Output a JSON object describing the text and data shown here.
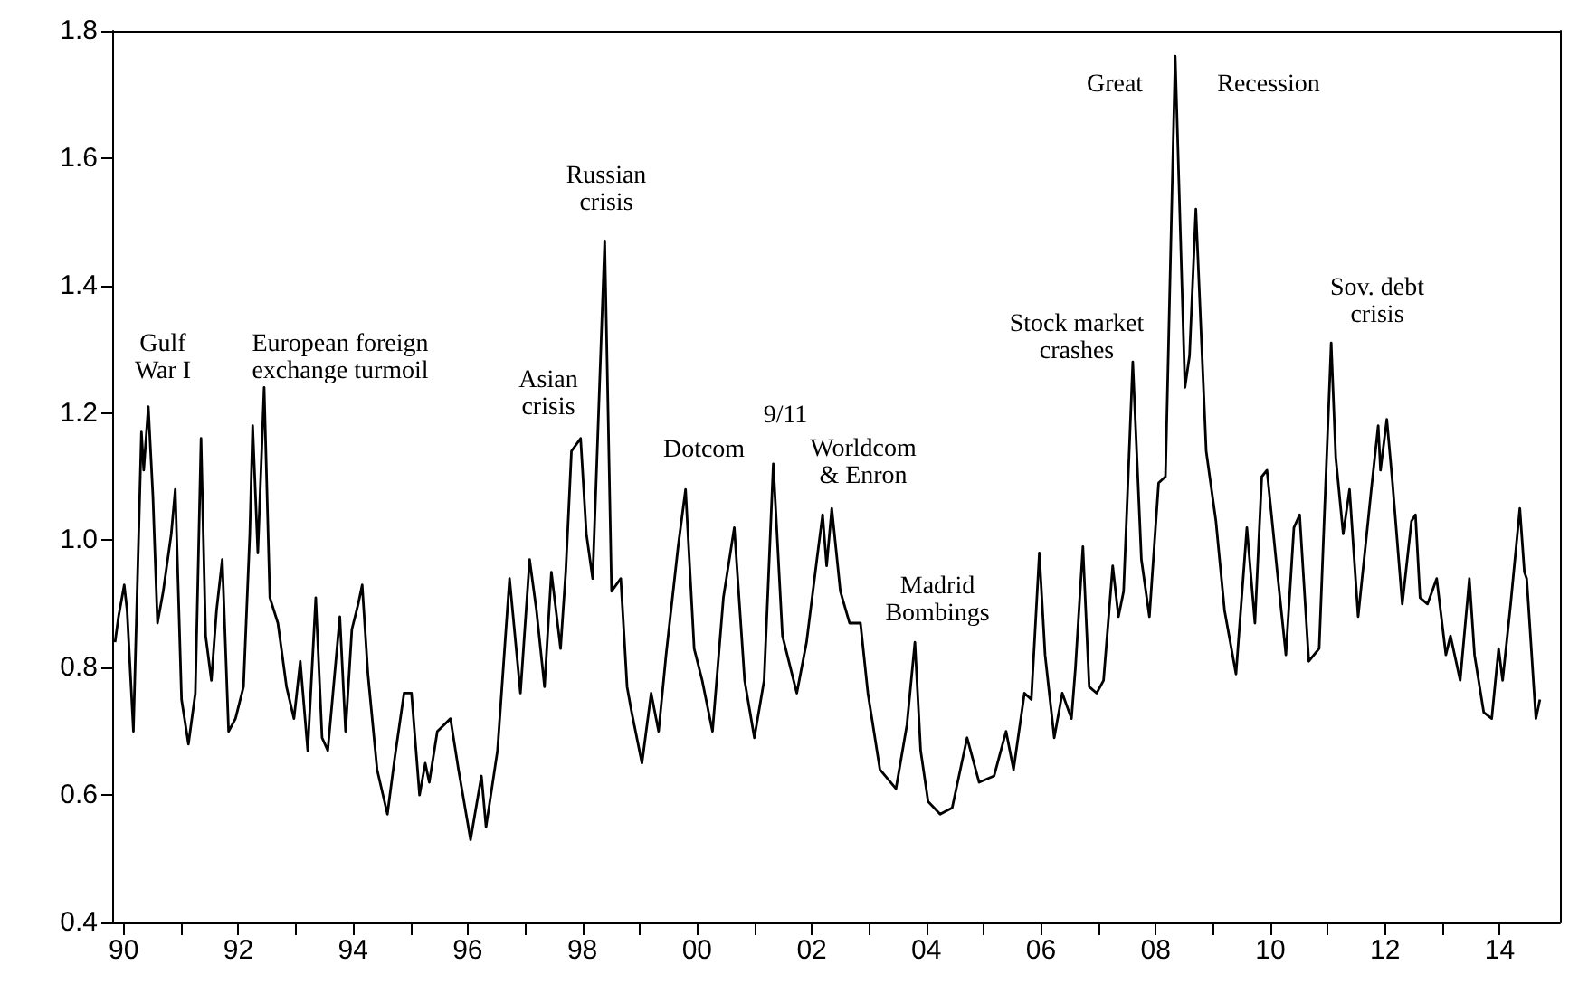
{
  "chart_data": {
    "type": "line",
    "x": [
      1989.85,
      1989.91,
      1990.01,
      1990.06,
      1990.17,
      1990.31,
      1990.35,
      1990.43,
      1990.51,
      1990.59,
      1990.69,
      1990.83,
      1990.9,
      1991.01,
      1991.13,
      1991.25,
      1991.35,
      1991.43,
      1991.53,
      1991.62,
      1991.72,
      1991.83,
      1991.95,
      1992.09,
      1992.2,
      1992.25,
      1992.34,
      1992.45,
      1992.55,
      1992.69,
      1992.84,
      1992.97,
      1993.08,
      1993.21,
      1993.35,
      1993.46,
      1993.56,
      1993.77,
      1993.87,
      1993.98,
      1994.09,
      1994.16,
      1994.26,
      1994.42,
      1994.6,
      1994.73,
      1994.89,
      1995.02,
      1995.16,
      1995.26,
      1995.33,
      1995.47,
      1995.7,
      1995.84,
      1996.05,
      1996.24,
      1996.32,
      1996.52,
      1996.73,
      1996.92,
      1997.08,
      1997.2,
      1997.34,
      1997.46,
      1997.62,
      1997.71,
      1997.81,
      1997.97,
      1998.07,
      1998.18,
      1998.39,
      1998.51,
      1998.67,
      1998.78,
      1998.86,
      1999.04,
      1999.2,
      1999.33,
      1999.46,
      1999.67,
      1999.8,
      1999.95,
      2000.09,
      2000.27,
      2000.46,
      2000.65,
      2000.83,
      2001.0,
      2001.17,
      2001.33,
      2001.49,
      2001.74,
      2001.91,
      2002.09,
      2002.19,
      2002.26,
      2002.35,
      2002.5,
      2002.66,
      2002.85,
      2002.98,
      2003.19,
      2003.47,
      2003.66,
      2003.8,
      2003.9,
      2004.03,
      2004.24,
      2004.45,
      2004.71,
      2004.92,
      2005.18,
      2005.39,
      2005.52,
      2005.71,
      2005.83,
      2005.97,
      2006.07,
      2006.23,
      2006.37,
      2006.53,
      2006.6,
      2006.73,
      2006.84,
      2006.97,
      2007.09,
      2007.25,
      2007.35,
      2007.44,
      2007.6,
      2007.75,
      2007.89,
      2008.05,
      2008.17,
      2008.34,
      2008.51,
      2008.59,
      2008.7,
      2008.88,
      2009.05,
      2009.2,
      2009.4,
      2009.59,
      2009.73,
      2009.85,
      2009.94,
      2010.12,
      2010.27,
      2010.41,
      2010.51,
      2010.67,
      2010.85,
      2011.06,
      2011.14,
      2011.27,
      2011.38,
      2011.53,
      2011.76,
      2011.88,
      2011.92,
      2012.03,
      2012.13,
      2012.3,
      2012.46,
      2012.53,
      2012.61,
      2012.74,
      2012.9,
      2013.06,
      2013.14,
      2013.31,
      2013.47,
      2013.56,
      2013.72,
      2013.86,
      2013.98,
      2014.05,
      2014.19,
      2014.35,
      2014.43,
      2014.47,
      2014.63,
      2014.7
    ],
    "series": [
      {
        "color": "#000000",
        "values": [
          0.84,
          0.88,
          0.93,
          0.89,
          0.7,
          1.17,
          1.11,
          1.21,
          1.07,
          0.87,
          0.92,
          1.01,
          1.08,
          0.75,
          0.68,
          0.76,
          1.16,
          0.85,
          0.78,
          0.89,
          0.97,
          0.7,
          0.72,
          0.77,
          1.01,
          1.18,
          0.98,
          1.24,
          0.91,
          0.87,
          0.77,
          0.72,
          0.81,
          0.67,
          0.91,
          0.69,
          0.67,
          0.88,
          0.7,
          0.86,
          0.9,
          0.93,
          0.79,
          0.64,
          0.57,
          0.66,
          0.76,
          0.76,
          0.6,
          0.65,
          0.62,
          0.7,
          0.72,
          0.64,
          0.53,
          0.63,
          0.55,
          0.67,
          0.94,
          0.76,
          0.97,
          0.89,
          0.77,
          0.95,
          0.83,
          0.95,
          1.14,
          1.16,
          1.01,
          0.94,
          1.47,
          0.92,
          0.94,
          0.77,
          0.73,
          0.65,
          0.76,
          0.7,
          0.82,
          0.99,
          1.08,
          0.83,
          0.78,
          0.7,
          0.91,
          1.02,
          0.78,
          0.69,
          0.78,
          1.12,
          0.85,
          0.76,
          0.84,
          0.97,
          1.04,
          0.96,
          1.05,
          0.92,
          0.87,
          0.87,
          0.76,
          0.64,
          0.61,
          0.71,
          0.84,
          0.67,
          0.59,
          0.57,
          0.58,
          0.69,
          0.62,
          0.63,
          0.7,
          0.64,
          0.76,
          0.75,
          0.98,
          0.82,
          0.69,
          0.76,
          0.72,
          0.8,
          0.99,
          0.77,
          0.76,
          0.78,
          0.96,
          0.88,
          0.92,
          1.28,
          0.97,
          0.88,
          1.09,
          1.1,
          1.76,
          1.24,
          1.29,
          1.52,
          1.14,
          1.03,
          0.89,
          0.79,
          1.02,
          0.87,
          1.1,
          1.11,
          0.95,
          0.82,
          1.02,
          1.04,
          0.81,
          0.83,
          1.31,
          1.13,
          1.01,
          1.08,
          0.88,
          1.08,
          1.18,
          1.11,
          1.19,
          1.09,
          0.9,
          1.03,
          1.04,
          0.91,
          0.9,
          0.94,
          0.82,
          0.85,
          0.78,
          0.94,
          0.82,
          0.73,
          0.72,
          0.83,
          0.78,
          0.9,
          1.05,
          0.95,
          0.94,
          0.72,
          0.75
        ]
      }
    ],
    "xlim": [
      1989.8,
      2015.05
    ],
    "xticks": [
      {
        "value": 1990,
        "label": "90"
      },
      {
        "value": 1991,
        "label": null
      },
      {
        "value": 1992,
        "label": "92"
      },
      {
        "value": 1993,
        "label": null
      },
      {
        "value": 1994,
        "label": "94"
      },
      {
        "value": 1995,
        "label": null
      },
      {
        "value": 1996,
        "label": "96"
      },
      {
        "value": 1997,
        "label": null
      },
      {
        "value": 1998,
        "label": "98"
      },
      {
        "value": 1999,
        "label": null
      },
      {
        "value": 2000,
        "label": "00"
      },
      {
        "value": 2001,
        "label": null
      },
      {
        "value": 2002,
        "label": "02"
      },
      {
        "value": 2003,
        "label": null
      },
      {
        "value": 2004,
        "label": "04"
      },
      {
        "value": 2005,
        "label": null
      },
      {
        "value": 2006,
        "label": "06"
      },
      {
        "value": 2007,
        "label": null
      },
      {
        "value": 2008,
        "label": "08"
      },
      {
        "value": 2009,
        "label": null
      },
      {
        "value": 2010,
        "label": "10"
      },
      {
        "value": 2011,
        "label": null
      },
      {
        "value": 2012,
        "label": "12"
      },
      {
        "value": 2013,
        "label": null
      },
      {
        "value": 2014,
        "label": "14"
      }
    ],
    "ylim": [
      0.4,
      1.8
    ],
    "yticks": [
      0.4,
      0.6,
      0.8,
      {
        "value": 1.0,
        "label": "1.0"
      },
      1.2,
      1.4,
      1.6,
      1.8
    ],
    "grid": false,
    "marker": "none",
    "line_style": "solid",
    "annotations": [
      "Gulf\nWar I",
      "European foreign\nexchange turmoil",
      "Asian\ncrisis",
      "Russian\ncrisis",
      "Dotcom",
      "9/11",
      "Worldcom\n& Enron",
      "Madrid\nBombings",
      "Stock market\ncrashes",
      "Great",
      "Recession",
      "Sov. debt\ncrisis"
    ]
  }
}
